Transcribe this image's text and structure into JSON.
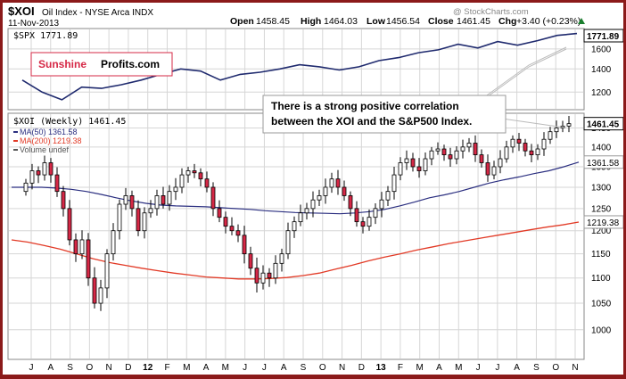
{
  "header": {
    "symbol": "$XOI",
    "name": "Oil Index - NYSE Arca INDX",
    "date": "11-Nov-2013",
    "open_label": "Open",
    "open": "1458.45",
    "high_label": "High",
    "high": "1464.03",
    "low_label": "Low",
    "low": "1456.54",
    "close_label": "Close",
    "close": "1461.45",
    "chg_label": "Chg",
    "chg": "+3.40 (+0.23%)",
    "up_arrow": "up-triangle-icon",
    "watermark": "@ StockCharts.com"
  },
  "logo": {
    "part1": "Sunshine",
    "part2": "Profits.com"
  },
  "annotation": {
    "line1": "There is a strong positive correlation",
    "line2": "between the XOI and the S&P500 Index."
  },
  "colors": {
    "border": "#8b1a1a",
    "spx_line": "#1f2a6e",
    "up_candle": "#ffffff",
    "down_candle": "#d62846",
    "ma50": "#2b2f80",
    "ma200": "#e23a26",
    "grid": "#d6d6d6"
  },
  "chart_data": [
    {
      "type": "line",
      "title": "$SPX 1771.89",
      "series": [
        {
          "name": "$SPX",
          "x": [
            "2011-07",
            "2011-08",
            "2011-09",
            "2011-10",
            "2011-11",
            "2011-12",
            "2012-01",
            "2012-02",
            "2012-03",
            "2012-04",
            "2012-05",
            "2012-06",
            "2012-07",
            "2012-08",
            "2012-09",
            "2012-10",
            "2012-11",
            "2012-12",
            "2013-01",
            "2013-02",
            "2013-03",
            "2013-04",
            "2013-05",
            "2013-06",
            "2013-07",
            "2013-08",
            "2013-09",
            "2013-10",
            "2013-11"
          ],
          "values": [
            1300,
            1200,
            1140,
            1240,
            1230,
            1260,
            1300,
            1350,
            1400,
            1380,
            1300,
            1350,
            1370,
            1400,
            1440,
            1420,
            1390,
            1420,
            1480,
            1510,
            1560,
            1590,
            1650,
            1610,
            1680,
            1640,
            1690,
            1750,
            1771.89
          ]
        }
      ],
      "last_value_label": "1771.89",
      "y_ticks": [
        "1600",
        "1400",
        "1200"
      ],
      "ylim": [
        1080,
        1800
      ],
      "scale": "log"
    },
    {
      "type": "candlestick",
      "title": "$XOI (Weekly) 1461.45",
      "legend": [
        {
          "name": "MA(50) 1361.58",
          "color": "#2b2f80"
        },
        {
          "name": "MA(200) 1219.38",
          "color": "#e23a26"
        },
        {
          "name": "Volume undef",
          "color": "#555555"
        }
      ],
      "x_ticks": [
        "J",
        "A",
        "S",
        "O",
        "N",
        "D",
        "12",
        "F",
        "M",
        "A",
        "M",
        "J",
        "J",
        "A",
        "S",
        "O",
        "N",
        "D",
        "13",
        "F",
        "M",
        "A",
        "M",
        "J",
        "J",
        "A",
        "S",
        "O",
        "N"
      ],
      "y_ticks": [
        "1450",
        "1400",
        "1350",
        "1300",
        "1250",
        "1200",
        "1150",
        "1100",
        "1050",
        "1000"
      ],
      "ylim": [
        950,
        1480
      ],
      "scale": "log",
      "last_labels": [
        {
          "text": "1461.45",
          "value": 1461.45,
          "style": "bold"
        },
        {
          "text": "1361.58",
          "value": 1361.58,
          "style": "normal"
        },
        {
          "text": "1219.38",
          "value": 1219.38,
          "style": "normal"
        }
      ],
      "xoi_closes": [
        1310,
        1340,
        1330,
        1360,
        1330,
        1290,
        1250,
        1180,
        1150,
        1180,
        1100,
        1050,
        1080,
        1150,
        1200,
        1260,
        1280,
        1250,
        1200,
        1240,
        1250,
        1280,
        1260,
        1290,
        1300,
        1330,
        1340,
        1335,
        1320,
        1300,
        1250,
        1230,
        1210,
        1200,
        1190,
        1150,
        1120,
        1090,
        1110,
        1100,
        1130,
        1150,
        1200,
        1220,
        1240,
        1250,
        1270,
        1280,
        1300,
        1320,
        1300,
        1280,
        1250,
        1220,
        1210,
        1230,
        1250,
        1270,
        1290,
        1330,
        1360,
        1370,
        1350,
        1340,
        1370,
        1390,
        1395,
        1380,
        1370,
        1390,
        1400,
        1410,
        1380,
        1360,
        1330,
        1350,
        1370,
        1400,
        1420,
        1410,
        1390,
        1380,
        1395,
        1420,
        1440,
        1450,
        1455,
        1461.45
      ],
      "ma50": [
        1300,
        1300,
        1300,
        1298,
        1295,
        1290,
        1283,
        1275,
        1268,
        1262,
        1258,
        1256,
        1255,
        1254,
        1252,
        1250,
        1248,
        1245,
        1243,
        1241,
        1240,
        1239,
        1238,
        1240,
        1243,
        1248,
        1256,
        1265,
        1275,
        1282,
        1290,
        1300,
        1310,
        1318,
        1325,
        1333,
        1340,
        1350,
        1361.58
      ],
      "ma200": [
        1180,
        1175,
        1168,
        1160,
        1150,
        1140,
        1132,
        1126,
        1120,
        1115,
        1110,
        1106,
        1102,
        1100,
        1098,
        1098,
        1099,
        1101,
        1105,
        1110,
        1118,
        1126,
        1135,
        1143,
        1150,
        1158,
        1165,
        1172,
        1178,
        1184,
        1190,
        1196,
        1202,
        1208,
        1213,
        1219.38
      ]
    }
  ]
}
